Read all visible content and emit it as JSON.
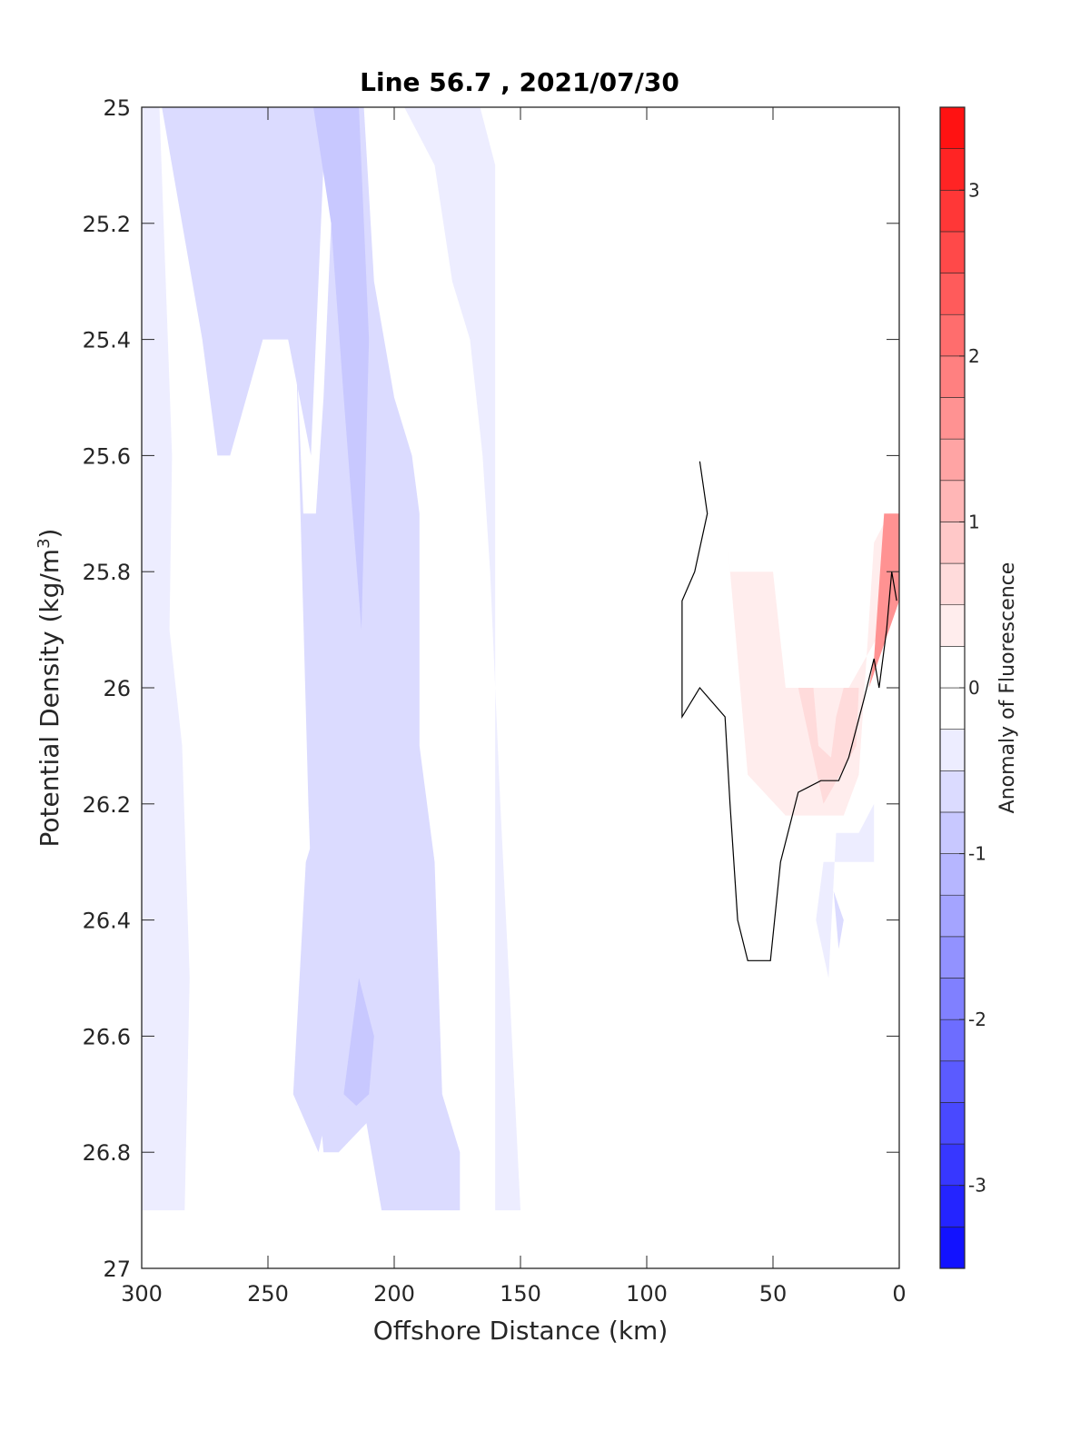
{
  "chart_data": {
    "type": "heatmap",
    "subtype": "filled-contour",
    "title": "Line 56.7 , 2021/07/30",
    "xlabel": "Offshore Distance (km)",
    "ylabel_main": "Potential Density (kg/m",
    "ylabel_sup": "3",
    "ylabel_close": ")",
    "xlim": [
      0,
      300
    ],
    "x_direction": "reversed",
    "ylim": [
      25,
      27
    ],
    "y_direction": "reversed",
    "xticks": [
      300,
      250,
      200,
      150,
      100,
      50,
      0
    ],
    "xtick_labels": [
      "300",
      "250",
      "200",
      "150",
      "100",
      "50",
      "0"
    ],
    "yticks": [
      25,
      25.2,
      25.4,
      25.6,
      25.8,
      26,
      26.2,
      26.4,
      26.6,
      26.8,
      27
    ],
    "ytick_labels": [
      "25",
      "25.2",
      "25.4",
      "25.6",
      "25.8",
      "26",
      "26.2",
      "26.4",
      "26.6",
      "26.8",
      "27"
    ],
    "colorbar": {
      "label": "Anomaly of Fluorescence",
      "range": [
        -3.5,
        3.5
      ],
      "level_step": 0.25,
      "ticks": [
        -3,
        -2,
        -1,
        0,
        1,
        2,
        3
      ],
      "tick_labels": [
        "-3",
        "-2",
        "-1",
        "0",
        "1",
        "2",
        "3"
      ],
      "negative_color": "#0000ff",
      "positive_color": "#ff0000",
      "zero_color": "#ffffff"
    },
    "contour_regions": [
      {
        "name": "left-band-outer",
        "level": -0.25,
        "points": [
          [
            300,
            25
          ],
          [
            293,
            25
          ],
          [
            288,
            25.6
          ],
          [
            289,
            25.9
          ],
          [
            284,
            26.1
          ],
          [
            281,
            26.5
          ],
          [
            283,
            26.9
          ],
          [
            300,
            26.9
          ]
        ]
      },
      {
        "name": "cross-band-upper",
        "level": -0.5,
        "points": [
          [
            292,
            25
          ],
          [
            227,
            25
          ],
          [
            233,
            25.6
          ],
          [
            242,
            25.4
          ],
          [
            252,
            25.4
          ],
          [
            265,
            25.6
          ],
          [
            270,
            25.6
          ],
          [
            276,
            25.4
          ]
        ]
      },
      {
        "name": "main-band-mid",
        "level": -0.5,
        "points": [
          [
            239,
            25.4
          ],
          [
            234,
            26.2
          ],
          [
            230,
            26.7
          ],
          [
            228,
            26.8
          ],
          [
            222,
            26.8
          ],
          [
            211,
            26.75
          ],
          [
            205,
            26.9
          ],
          [
            174,
            26.9
          ],
          [
            174,
            26.8
          ],
          [
            181,
            26.7
          ],
          [
            184,
            26.3
          ],
          [
            190,
            26.1
          ],
          [
            190,
            25.7
          ],
          [
            193,
            25.6
          ],
          [
            200,
            25.5
          ],
          [
            208,
            25.3
          ],
          [
            212,
            25
          ],
          [
            223,
            25
          ],
          [
            228,
            25.5
          ],
          [
            231,
            25.7
          ],
          [
            236,
            25.7
          ]
        ]
      },
      {
        "name": "main-band-lower",
        "level": -0.5,
        "points": [
          [
            240,
            26.7
          ],
          [
            230,
            26.8
          ],
          [
            225,
            26.7
          ],
          [
            222,
            26.6
          ],
          [
            218,
            26.6
          ],
          [
            215,
            26.5
          ],
          [
            218,
            26.3
          ],
          [
            228,
            26.2
          ],
          [
            235,
            26.3
          ]
        ]
      },
      {
        "name": "right-band",
        "level": -0.25,
        "points": [
          [
            196,
            25
          ],
          [
            166,
            25
          ],
          [
            160,
            25.1
          ],
          [
            160,
            26.9
          ],
          [
            150,
            26.9
          ],
          [
            158,
            26.2
          ],
          [
            162,
            25.8
          ],
          [
            165,
            25.6
          ],
          [
            170,
            25.4
          ],
          [
            177,
            25.3
          ],
          [
            184,
            25.1
          ]
        ]
      },
      {
        "name": "core-dark",
        "level": -0.75,
        "points": [
          [
            232,
            25
          ],
          [
            214,
            25
          ],
          [
            210,
            25.4
          ],
          [
            213,
            25.9
          ],
          [
            220,
            25.5
          ],
          [
            225,
            25.2
          ]
        ]
      },
      {
        "name": "core-dark-lower",
        "level": -0.75,
        "points": [
          [
            214,
            26.5
          ],
          [
            220,
            26.7
          ],
          [
            215,
            26.72
          ],
          [
            210,
            26.7
          ],
          [
            208,
            26.6
          ]
        ]
      },
      {
        "name": "pink-left",
        "level": 0.25,
        "points": [
          [
            68,
            25.75
          ],
          [
            67,
            25.8
          ],
          [
            50,
            25.8
          ],
          [
            45,
            26
          ],
          [
            20,
            26
          ],
          [
            7,
            25.9
          ],
          [
            4,
            25.82
          ],
          [
            0,
            25.7
          ],
          [
            4,
            25.7
          ],
          [
            10,
            25.75
          ],
          [
            13,
            25.95
          ],
          [
            16,
            26.15
          ],
          [
            22,
            26.22
          ],
          [
            45,
            26.22
          ],
          [
            60,
            26.15
          ],
          [
            63,
            26
          ]
        ]
      },
      {
        "name": "pink-mid",
        "level": 0.5,
        "points": [
          [
            40,
            26
          ],
          [
            34,
            26
          ],
          [
            32,
            26.1
          ],
          [
            27,
            26.12
          ],
          [
            25,
            26.05
          ],
          [
            22,
            26
          ],
          [
            16,
            26
          ],
          [
            17,
            26.1
          ],
          [
            30,
            26.2
          ]
        ]
      },
      {
        "name": "red-wedge",
        "level": 1.5,
        "points": [
          [
            6,
            25.7
          ],
          [
            0,
            25.7
          ],
          [
            0,
            25.85
          ],
          [
            4,
            25.9
          ],
          [
            12,
            26.0
          ],
          [
            10,
            25.95
          ]
        ]
      },
      {
        "name": "blue-right-lower",
        "level": -0.25,
        "points": [
          [
            28,
            26.5
          ],
          [
            33,
            26.4
          ],
          [
            30,
            26.3
          ],
          [
            20,
            26.3
          ],
          [
            10,
            26.3
          ],
          [
            10,
            26.2
          ],
          [
            16,
            26.25
          ],
          [
            25,
            26.25
          ]
        ]
      },
      {
        "name": "blue-right-dot",
        "level": -0.5,
        "points": [
          [
            26,
            26.35
          ],
          [
            24,
            26.45
          ],
          [
            22,
            26.4
          ]
        ]
      }
    ],
    "contour_lines": [
      {
        "name": "zero-contour",
        "level": 0,
        "points": [
          [
            79,
            25.61
          ],
          [
            76,
            25.7
          ],
          [
            81,
            25.8
          ],
          [
            86,
            25.85
          ],
          [
            86,
            26.05
          ],
          [
            79,
            26.0
          ],
          [
            69,
            26.05
          ],
          [
            67,
            26.2
          ],
          [
            64,
            26.4
          ],
          [
            60,
            26.47
          ],
          [
            51,
            26.47
          ],
          [
            47,
            26.3
          ],
          [
            40,
            26.18
          ],
          [
            31,
            26.16
          ],
          [
            24,
            26.16
          ],
          [
            20,
            26.12
          ],
          [
            14,
            26.02
          ],
          [
            10,
            25.95
          ],
          [
            8,
            26.0
          ],
          [
            5,
            25.9
          ],
          [
            3,
            25.8
          ],
          [
            1,
            25.85
          ]
        ]
      }
    ]
  }
}
